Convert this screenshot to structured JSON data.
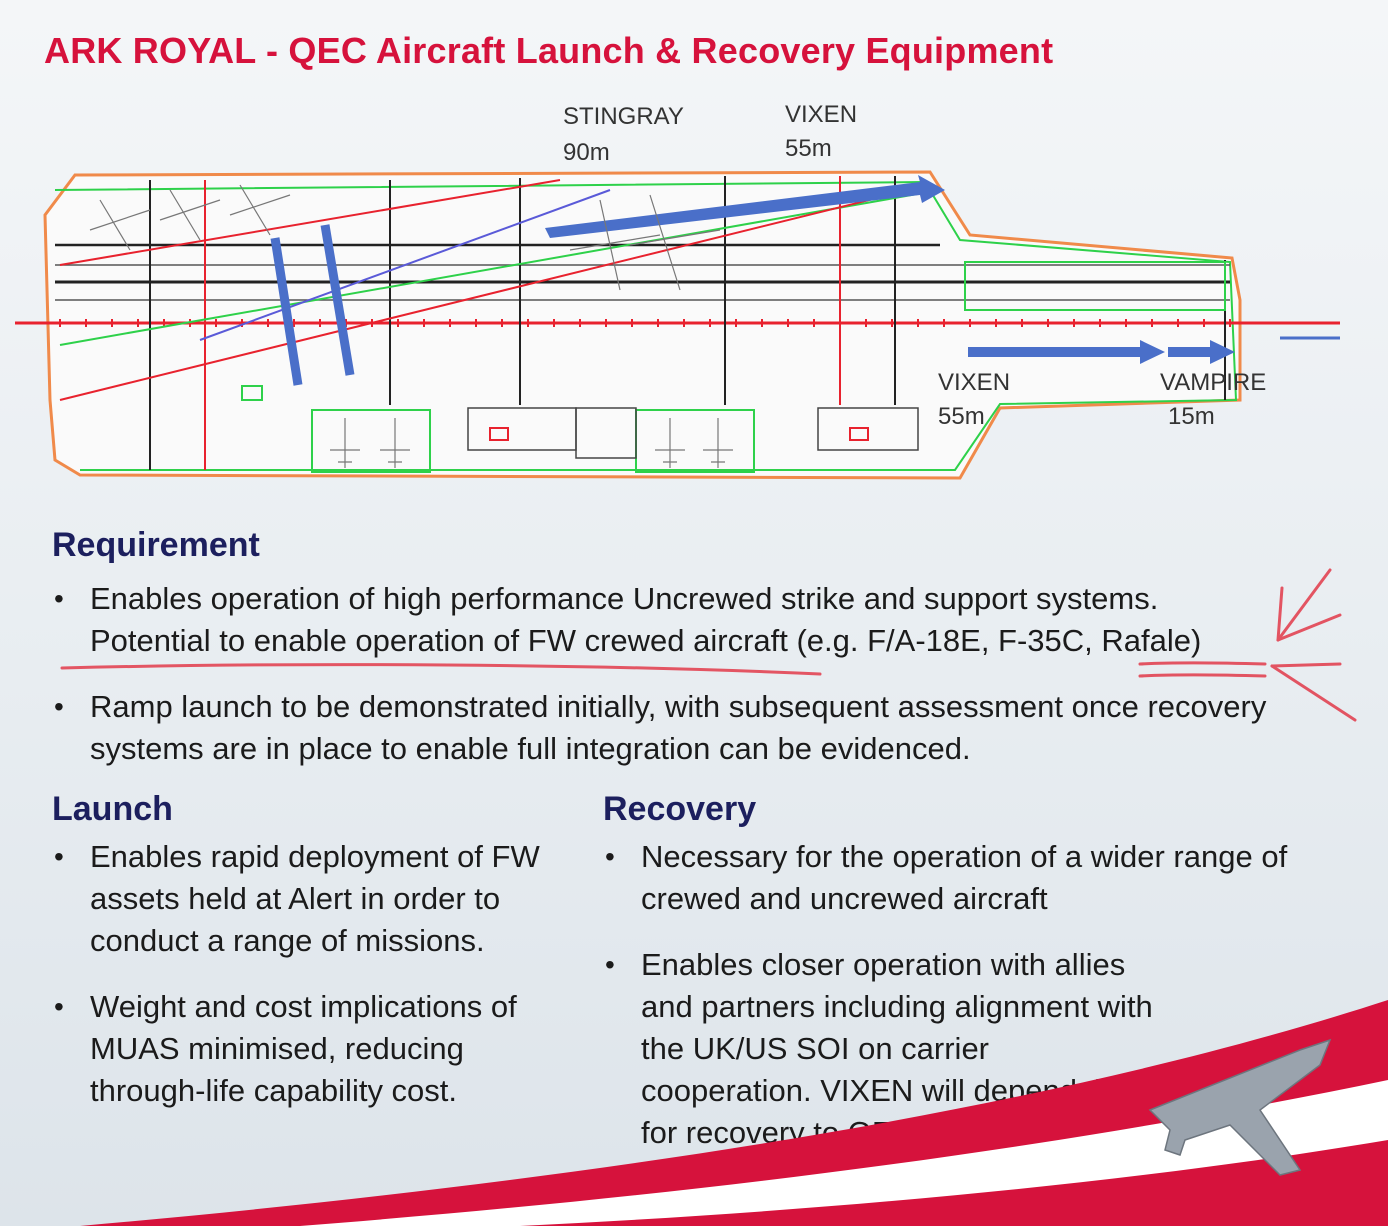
{
  "title": "ARK ROYAL - QEC Aircraft Launch & Recovery Equipment",
  "diagram": {
    "labels": {
      "stingray_name": "STINGRAY",
      "stingray_dist": "90m",
      "vixen_top_name": "VIXEN",
      "vixen_top_dist": "55m",
      "vixen_bottom_name": "VIXEN",
      "vixen_bottom_dist": "55m",
      "vampire_name": "VAMPIRE",
      "vampire_dist": "15m"
    },
    "colors": {
      "arrow_blue": "#4a6fc9",
      "line_red": "#e8222e",
      "line_green": "#2ed14a",
      "line_black": "#222222",
      "title_red": "#d6123c",
      "heading_navy": "#1c1f5e"
    }
  },
  "requirement": {
    "heading": "Requirement",
    "items": [
      "Enables operation of high performance Uncrewed strike and support systems. Potential to enable operation of FW crewed aircraft (e.g. F/A-18E, F-35C, Rafale)",
      "Ramp launch to be demonstrated initially, with subsequent assessment once recovery systems are in place to enable full integration can be evidenced."
    ]
  },
  "launch": {
    "heading": "Launch",
    "items": [
      "Enables rapid deployment of FW assets held at Alert in order to conduct a range of missions.",
      "Weight and cost implications of MUAS minimised, reducing through-life capability cost."
    ]
  },
  "recovery": {
    "heading": "Recovery",
    "items": [
      "Necessary for the operation of a wider range of crewed and uncrewed aircraft",
      "Enables closer operation with allies and partners including alignment with the UK/US SOI on carrier cooperation. VIXEN will depend this for recovery to QEC."
    ]
  }
}
